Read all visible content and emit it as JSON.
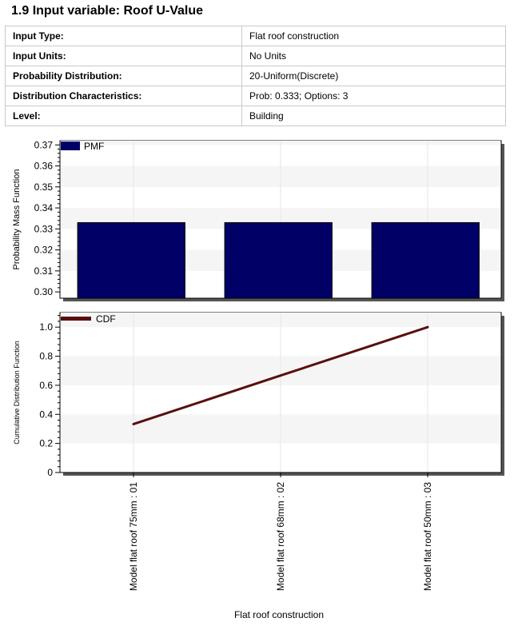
{
  "heading": "1.9 Input variable: Roof U-Value",
  "properties": [
    {
      "label": "Input Type:",
      "value": "Flat roof construction"
    },
    {
      "label": "Input Units:",
      "value": "No Units"
    },
    {
      "label": "Probability Distribution:",
      "value": "20-Uniform(Discrete)"
    },
    {
      "label": "Distribution Characteristics:",
      "value": "Prob: 0.333; Options: 3"
    },
    {
      "label": "Level:",
      "value": "Building"
    }
  ],
  "colors": {
    "pmf_bar": "#000066",
    "cdf_line": "#5a0f0f",
    "plot_band": "#f5f5f5",
    "grid": "#e6e6e6"
  },
  "chart_data": [
    {
      "type": "bar",
      "categories": [
        "Model flat roof 75mm : 01",
        "Model flat roof 68mm : 02",
        "Model flat roof 50mm : 03"
      ],
      "series": [
        {
          "name": "PMF",
          "values": [
            0.333,
            0.333,
            0.333
          ]
        }
      ],
      "ylabel": "Probability Mass Function",
      "ylim": [
        0.297,
        0.372
      ],
      "yticks": [
        "0.30",
        "0.31",
        "0.32",
        "0.33",
        "0.34",
        "0.35",
        "0.36",
        "0.37"
      ],
      "legend": "top-left",
      "grid": true
    },
    {
      "type": "line",
      "categories": [
        "Model flat roof 75mm : 01",
        "Model flat roof 68mm : 02",
        "Model flat roof 50mm : 03"
      ],
      "series": [
        {
          "name": "CDF",
          "values": [
            0.333,
            0.667,
            1.0
          ]
        }
      ],
      "ylabel": "Cumulative Distribution Function",
      "xlabel": "Flat roof construction",
      "ylim": [
        0,
        1.1
      ],
      "yticks": [
        "0",
        "0.2",
        "0.4",
        "0.6",
        "0.8",
        "1.0"
      ],
      "legend": "top-left",
      "grid": true
    }
  ]
}
